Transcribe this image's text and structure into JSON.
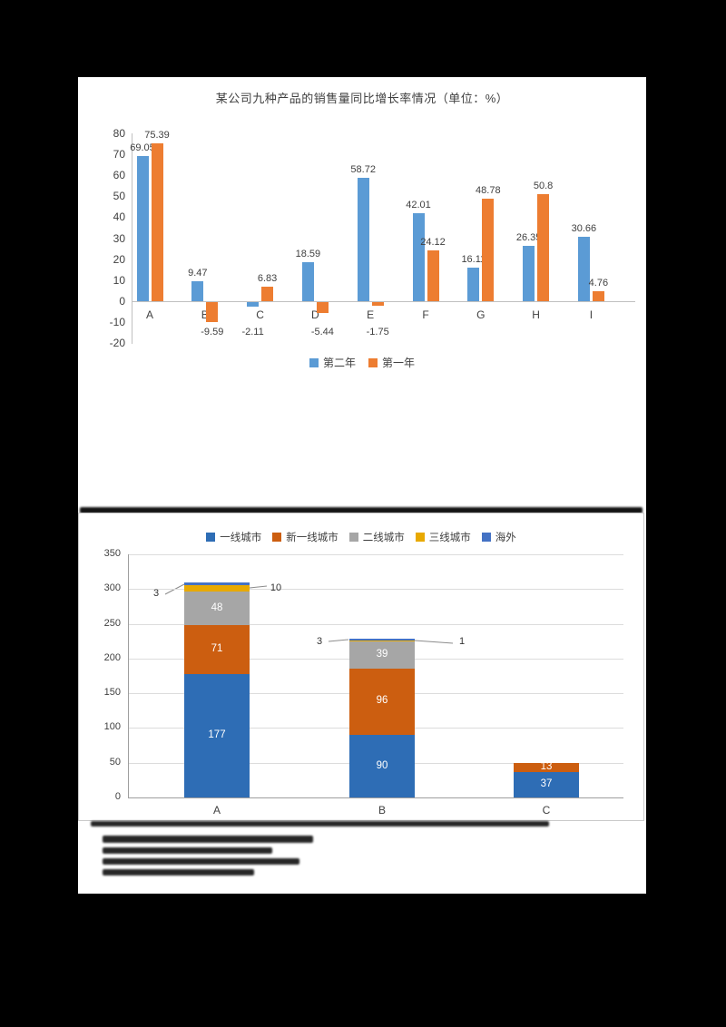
{
  "page": {
    "background": "#ffffff"
  },
  "chart_data": [
    {
      "type": "bar",
      "title": "某公司九种产品的销售量同比增长率情况（单位：%）",
      "categories": [
        "A",
        "B",
        "C",
        "D",
        "E",
        "F",
        "G",
        "H",
        "I"
      ],
      "series": [
        {
          "name": "第二年",
          "color": "#5B9BD5",
          "values": [
            69.05,
            9.47,
            -2.11,
            18.59,
            58.72,
            42.01,
            16.11,
            26.35,
            30.66
          ]
        },
        {
          "name": "第一年",
          "color": "#ED7D31",
          "values": [
            75.39,
            -9.59,
            6.83,
            -5.44,
            -1.75,
            24.12,
            48.78,
            50.8,
            4.76
          ]
        }
      ],
      "xlabel": "",
      "ylabel": "",
      "ylim": [
        -20,
        80
      ],
      "ytick_step": 10,
      "grid": false,
      "legend_position": "bottom"
    },
    {
      "type": "stacked-bar",
      "title": "",
      "categories": [
        "A",
        "B",
        "C"
      ],
      "series": [
        {
          "name": "一线城市",
          "color": "#2E6DB5",
          "values": [
            177,
            90,
            37
          ]
        },
        {
          "name": "新一线城市",
          "color": "#CC5E10",
          "values": [
            71,
            96,
            13
          ]
        },
        {
          "name": "二线城市",
          "color": "#A6A6A6",
          "values": [
            48,
            39,
            0
          ]
        },
        {
          "name": "三线城市",
          "color": "#E8A900",
          "values": [
            10,
            1,
            0
          ]
        },
        {
          "name": "海外",
          "color": "#4472C4",
          "values": [
            3,
            3,
            0
          ]
        }
      ],
      "xlabel": "",
      "ylabel": "",
      "ylim": [
        0,
        350
      ],
      "ytick_step": 50,
      "grid": true,
      "legend_position": "top",
      "callouts": [
        {
          "category": "A",
          "series": "海外",
          "label": "3",
          "side": "left"
        },
        {
          "category": "A",
          "series": "三线城市",
          "label": "10",
          "side": "right"
        },
        {
          "category": "B",
          "series": "海外",
          "label": "3",
          "side": "left"
        },
        {
          "category": "B",
          "series": "三线城市",
          "label": "1",
          "side": "right"
        }
      ]
    }
  ]
}
